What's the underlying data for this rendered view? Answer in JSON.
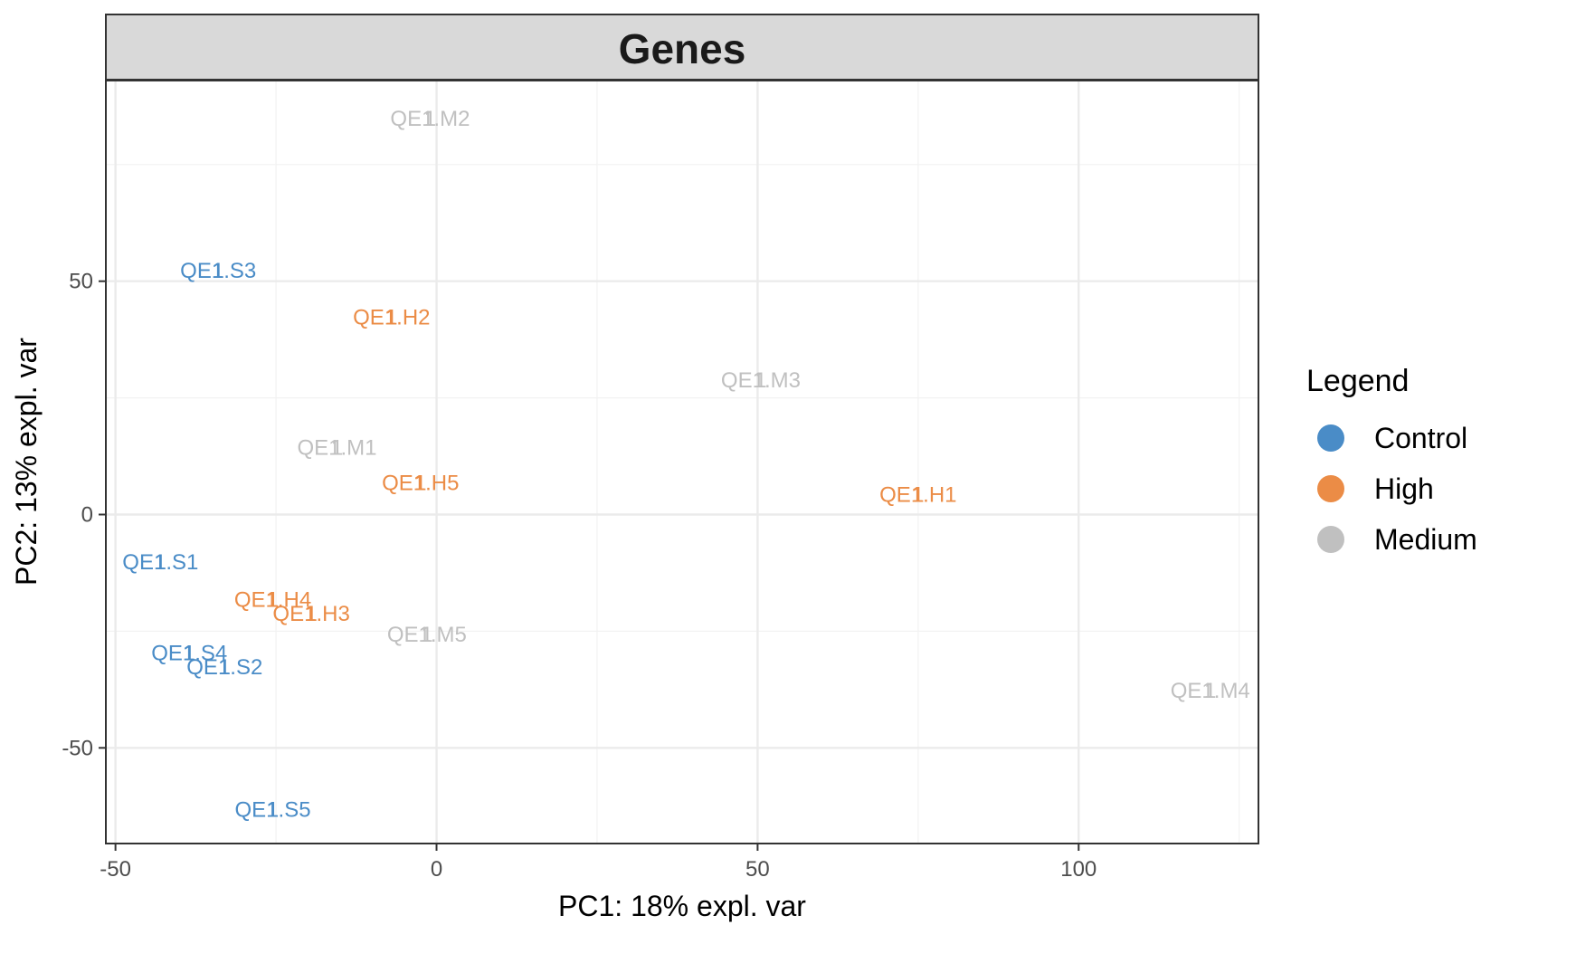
{
  "chart_data": {
    "type": "scatter",
    "title": "Genes",
    "xlabel": "PC1: 18% expl. var",
    "ylabel": "PC2: 13% expl. var",
    "xlim": [
      -51.5,
      128
    ],
    "ylim": [
      -70.5,
      93
    ],
    "x_ticks": [
      -50,
      0,
      50,
      100
    ],
    "x_tick_labels": [
      "-50",
      "0",
      "50",
      "100"
    ],
    "y_ticks": [
      -50,
      0,
      50
    ],
    "y_tick_labels": [
      "-50",
      "0",
      "50"
    ],
    "grid": true,
    "point_shape": "1",
    "legend": {
      "title": "Legend",
      "position": "right",
      "items": [
        {
          "name": "Control",
          "color": "#4a8cc7"
        },
        {
          "name": "High",
          "color": "#eb8c46"
        },
        {
          "name": "Medium",
          "color": "#c0c0c0"
        }
      ]
    },
    "series": [
      {
        "name": "Control",
        "color": "#4a8cc7",
        "points": [
          {
            "label": "QE1.S1",
            "x": -43,
            "y": -10
          },
          {
            "label": "QE1.S2",
            "x": -33,
            "y": -32.5
          },
          {
            "label": "QE1.S3",
            "x": -34,
            "y": 52.5
          },
          {
            "label": "QE1.S4",
            "x": -38.5,
            "y": -29.5
          },
          {
            "label": "QE1.S5",
            "x": -25.5,
            "y": -63
          }
        ]
      },
      {
        "name": "High",
        "color": "#eb8c46",
        "points": [
          {
            "label": "QE1.H1",
            "x": 75,
            "y": 4.5
          },
          {
            "label": "QE1.H2",
            "x": -7,
            "y": 42.5
          },
          {
            "label": "QE1.H3",
            "x": -19.5,
            "y": -21
          },
          {
            "label": "QE1.H4",
            "x": -25.5,
            "y": -18
          },
          {
            "label": "QE1.H5",
            "x": -2.5,
            "y": 7
          }
        ]
      },
      {
        "name": "Medium",
        "color": "#c0c0c0",
        "points": [
          {
            "label": "QE1.M1",
            "x": -15.5,
            "y": 14.5
          },
          {
            "label": "QE1.M2",
            "x": -1,
            "y": 85
          },
          {
            "label": "QE1.M3",
            "x": 50.5,
            "y": 29
          },
          {
            "label": "QE1.M4",
            "x": 120.5,
            "y": -37.5
          },
          {
            "label": "QE1.M5",
            "x": -1.5,
            "y": -25.5
          }
        ]
      }
    ]
  }
}
